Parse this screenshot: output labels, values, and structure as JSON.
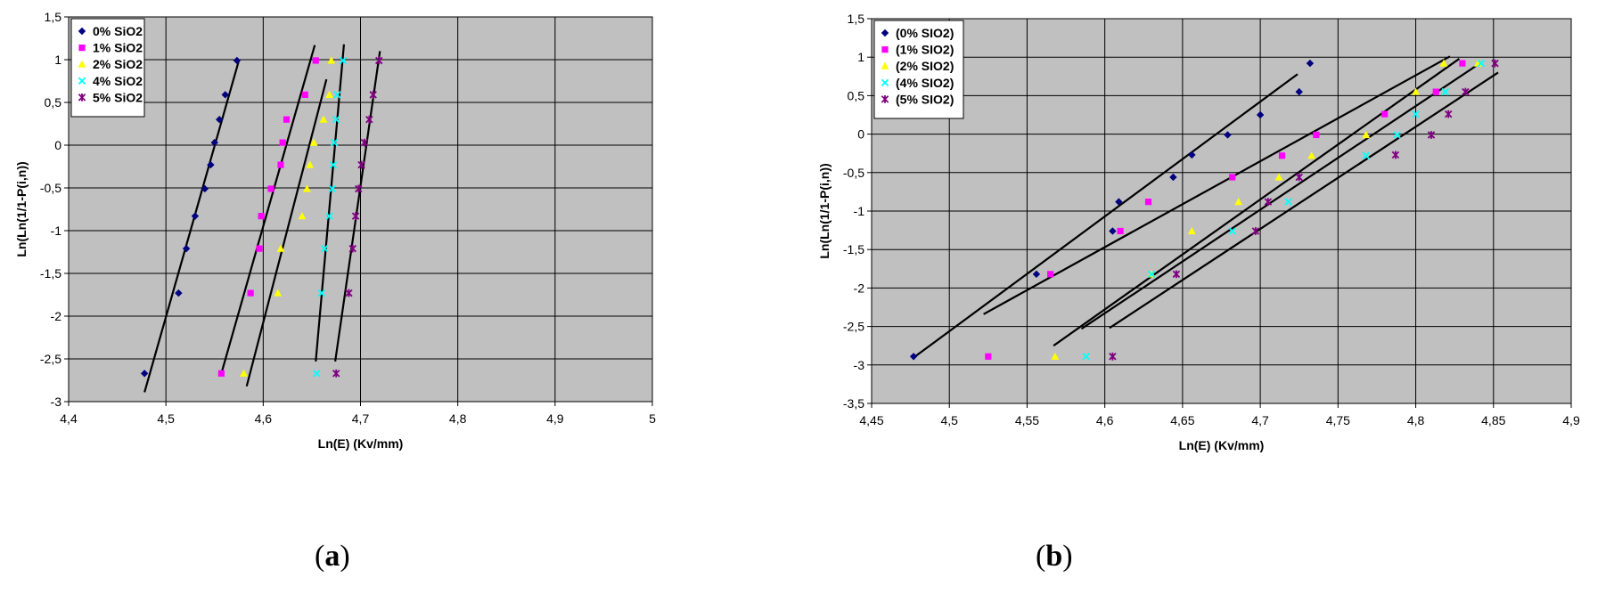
{
  "chart_data": [
    {
      "type": "scatter",
      "panel": "a",
      "caption_open": "(",
      "caption_letter": "a",
      "caption_close": ")",
      "xlabel": "Ln(E) (Kv/mm)",
      "ylabel": "Ln(Ln(1/1-P(i,n))",
      "xlim": [
        4.4,
        5
      ],
      "ylim": [
        -3,
        1.5
      ],
      "x_ticks": [
        4.4,
        4.5,
        4.6,
        4.7,
        4.8,
        4.9,
        5
      ],
      "x_tick_labels": [
        "4,4",
        "4,5",
        "4,6",
        "4,7",
        "4,8",
        "4,9",
        "5"
      ],
      "y_ticks": [
        1.5,
        1,
        0.5,
        0,
        -0.5,
        -1,
        -1.5,
        -2,
        -2.5,
        -3
      ],
      "y_tick_labels": [
        "1,5",
        "1",
        "0,5",
        "0",
        "-0,5",
        "-1",
        "-1,5",
        "-2",
        "-2,5",
        "-3"
      ],
      "grid": true,
      "legend_position": "top-left",
      "series": [
        {
          "name": "0% SiO2",
          "color": "#000080",
          "marker": "diamond",
          "x": [
            4.478,
            4.513,
            4.521,
            4.53,
            4.54,
            4.546,
            4.55,
            4.555,
            4.561,
            4.573
          ],
          "y": [
            -2.67,
            -1.73,
            -1.21,
            -0.83,
            -0.51,
            -0.23,
            0.03,
            0.3,
            0.59,
            0.99
          ],
          "fit": [
            [
              4.478,
              -2.89
            ],
            [
              4.575,
              0.99
            ]
          ]
        },
        {
          "name": "1% SiO2",
          "color": "#ff00ff",
          "marker": "square",
          "x": [
            4.557,
            4.587,
            4.596,
            4.598,
            4.608,
            4.618,
            4.62,
            4.624,
            4.643,
            4.654
          ],
          "y": [
            -2.67,
            -1.73,
            -1.21,
            -0.83,
            -0.51,
            -0.23,
            0.03,
            0.3,
            0.59,
            0.99
          ],
          "fit": [
            [
              4.557,
              -2.67
            ],
            [
              4.653,
              1.17
            ]
          ]
        },
        {
          "name": "2% SiO2",
          "color": "#ffff00",
          "marker": "triangle",
          "x": [
            4.58,
            4.615,
            4.618,
            4.64,
            4.645,
            4.648,
            4.652,
            4.662,
            4.668,
            4.67
          ],
          "y": [
            -2.67,
            -1.73,
            -1.21,
            -0.83,
            -0.51,
            -0.23,
            0.03,
            0.3,
            0.59,
            0.99
          ],
          "fit": [
            [
              4.583,
              -2.82
            ],
            [
              4.665,
              0.77
            ]
          ]
        },
        {
          "name": "4% SiO2",
          "color": "#00ffff",
          "marker": "x",
          "x": [
            4.655,
            4.66,
            4.663,
            4.668,
            4.671,
            4.672,
            4.673,
            4.675,
            4.676,
            4.682
          ],
          "y": [
            -2.67,
            -1.73,
            -1.21,
            -0.83,
            -0.51,
            -0.23,
            0.03,
            0.3,
            0.59,
            0.99
          ],
          "fit": [
            [
              4.654,
              -2.53
            ],
            [
              4.683,
              1.18
            ]
          ]
        },
        {
          "name": "5% SiO2",
          "color": "#800080",
          "marker": "star",
          "x": [
            4.675,
            4.688,
            4.692,
            4.695,
            4.698,
            4.701,
            4.704,
            4.709,
            4.713,
            4.719
          ],
          "y": [
            -2.67,
            -1.73,
            -1.21,
            -0.83,
            -0.51,
            -0.23,
            0.03,
            0.3,
            0.59,
            0.99
          ],
          "fit": [
            [
              4.674,
              -2.53
            ],
            [
              4.72,
              1.1
            ]
          ]
        }
      ]
    },
    {
      "type": "scatter",
      "panel": "b",
      "caption_open": "(",
      "caption_letter": "b",
      "caption_close": ")",
      "xlabel": "Ln(E) (Kv/mm)",
      "ylabel": "Ln(Ln(1/1-P(i,n))",
      "xlim": [
        4.45,
        4.9
      ],
      "ylim": [
        -3.5,
        1.5
      ],
      "x_ticks": [
        4.45,
        4.5,
        4.55,
        4.6,
        4.65,
        4.7,
        4.75,
        4.8,
        4.85,
        4.9
      ],
      "x_tick_labels": [
        "4,45",
        "4,5",
        "4,55",
        "4,6",
        "4,65",
        "4,7",
        "4,75",
        "4,8",
        "4,85",
        "4,9"
      ],
      "y_ticks": [
        1.5,
        1,
        0.5,
        0,
        -0.5,
        -1,
        -1.5,
        -2,
        -2.5,
        -3,
        -3.5
      ],
      "y_tick_labels": [
        "1,5",
        "1",
        "0,5",
        "0",
        "-0,5",
        "-1",
        "-1,5",
        "-2",
        "-2,5",
        "-3",
        "-3,5"
      ],
      "grid": true,
      "legend_position": "top-left",
      "series": [
        {
          "name": "(0% SIO2)",
          "color": "#000080",
          "marker": "diamond",
          "x": [
            4.477,
            4.556,
            4.605,
            4.609,
            4.644,
            4.656,
            4.679,
            4.7,
            4.725,
            4.732
          ],
          "y": [
            -2.89,
            -1.82,
            -1.26,
            -0.88,
            -0.56,
            -0.27,
            -0.01,
            0.25,
            0.55,
            0.92
          ],
          "fit": [
            [
              4.478,
              -2.89
            ],
            [
              4.724,
              0.78
            ]
          ]
        },
        {
          "name": "(1% SIO2)",
          "color": "#ff00ff",
          "marker": "square",
          "x": [
            4.525,
            4.565,
            4.61,
            4.628,
            4.682,
            4.714,
            4.736,
            4.78,
            4.813,
            4.83
          ],
          "y": [
            -2.89,
            -1.82,
            -1.26,
            -0.88,
            -0.56,
            -0.28,
            -0.01,
            0.26,
            0.55,
            0.92
          ],
          "fit": [
            [
              4.522,
              -2.34
            ],
            [
              4.822,
              1.01
            ]
          ]
        },
        {
          "name": "(2% SIO2)",
          "color": "#ffff00",
          "marker": "triangle",
          "x": [
            4.568,
            4.63,
            4.656,
            4.686,
            4.712,
            4.733,
            4.768,
            4.8,
            4.818,
            4.84
          ],
          "y": [
            -2.89,
            -1.82,
            -1.26,
            -0.88,
            -0.56,
            -0.28,
            -0.01,
            0.55,
            0.92,
            0.92
          ],
          "fit": [
            [
              4.567,
              -2.75
            ],
            [
              4.828,
              0.98
            ]
          ]
        },
        {
          "name": "(4% SIO2)",
          "color": "#00ffff",
          "marker": "x",
          "x": [
            4.588,
            4.63,
            4.682,
            4.718,
            4.768,
            4.788,
            4.8,
            4.819,
            4.842
          ],
          "y": [
            -2.89,
            -1.82,
            -1.26,
            -0.88,
            -0.28,
            -0.01,
            0.26,
            0.55,
            0.92
          ],
          "fit": [
            [
              4.585,
              -2.53
            ],
            [
              4.842,
              0.93
            ]
          ]
        },
        {
          "name": "(5% SIO2)",
          "color": "#800080",
          "marker": "star",
          "x": [
            4.605,
            4.646,
            4.697,
            4.705,
            4.725,
            4.787,
            4.81,
            4.821,
            4.832,
            4.851
          ],
          "y": [
            -2.89,
            -1.82,
            -1.26,
            -0.88,
            -0.56,
            -0.27,
            -0.01,
            0.26,
            0.55,
            0.92
          ],
          "fit": [
            [
              4.603,
              -2.52
            ],
            [
              4.853,
              0.8
            ]
          ]
        }
      ]
    }
  ]
}
